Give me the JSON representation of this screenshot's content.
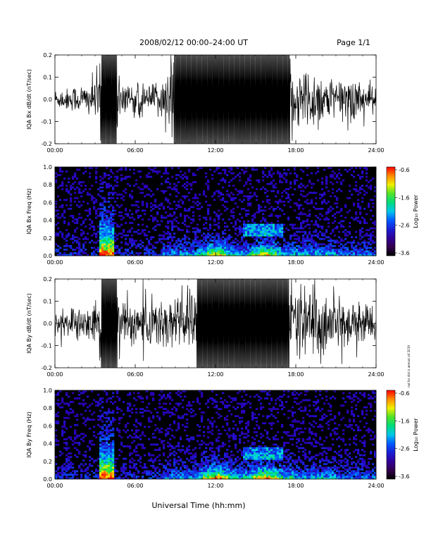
{
  "header": {
    "title": "2008/02/12  00:00–24:00 UT",
    "page": "Page 1/1"
  },
  "footer": {
    "xlabel": "Universal Time (hh:mm)"
  },
  "side_note": "not for dist is aemod csf 2019",
  "chart_data": [
    {
      "type": "line",
      "ylabel": "IQA Bx dB/dt (nT/sec)",
      "x_ticks": [
        "00:00",
        "06:00",
        "12:00",
        "18:00",
        "24:00"
      ],
      "y_ticks": [
        "0.2",
        "0.1",
        "0.0",
        "-0.1",
        "-0.2"
      ],
      "xlim": [
        0,
        24
      ],
      "ylim": [
        -0.2,
        0.2
      ],
      "envelope": {
        "x": [
          0,
          1,
          2,
          3,
          3.5,
          4.6,
          5,
          6,
          7,
          8,
          8.5,
          9,
          10,
          11,
          12,
          13,
          14,
          15,
          16,
          17,
          17.5,
          18,
          19,
          20,
          21,
          22,
          23,
          24
        ],
        "amplitude": [
          0.04,
          0.05,
          0.06,
          0.08,
          0.2,
          0.2,
          0.08,
          0.07,
          0.06,
          0.07,
          0.15,
          0.2,
          0.2,
          0.2,
          0.2,
          0.2,
          0.2,
          0.2,
          0.2,
          0.2,
          0.2,
          0.12,
          0.14,
          0.1,
          0.08,
          0.1,
          0.08,
          0.05
        ]
      }
    },
    {
      "type": "heatmap",
      "ylabel": "IQA Bx Freq (Hz)",
      "x_ticks": [
        "00:00",
        "06:00",
        "12:00",
        "18:00",
        "24:00"
      ],
      "y_ticks": [
        "1.0",
        "0.8",
        "0.6",
        "0.4",
        "0.2",
        "0.0"
      ],
      "xlim": [
        0,
        24
      ],
      "ylim": [
        0,
        1.0
      ],
      "colorbar": {
        "label": "Log₁₀ Power",
        "ticks": [
          "-0.6",
          "-1.6",
          "-2.6",
          "-3.6"
        ],
        "range": [
          -3.6,
          -0.6
        ]
      }
    },
    {
      "type": "line",
      "ylabel": "IQA By dB/dt (nT/sec)",
      "x_ticks": [
        "00:00",
        "06:00",
        "12:00",
        "18:00",
        "24:00"
      ],
      "y_ticks": [
        "0.2",
        "0.1",
        "0.0",
        "-0.1",
        "-0.2"
      ],
      "xlim": [
        0,
        24
      ],
      "ylim": [
        -0.2,
        0.2
      ],
      "envelope": {
        "x": [
          0,
          1,
          2,
          3,
          3.5,
          4.6,
          5,
          6,
          7,
          8,
          9,
          10,
          10.8,
          11.5,
          12,
          13,
          14,
          15,
          16,
          17,
          18,
          19,
          20,
          21,
          22,
          23,
          24
        ],
        "amplitude": [
          0.05,
          0.07,
          0.06,
          0.08,
          0.2,
          0.2,
          0.1,
          0.1,
          0.12,
          0.1,
          0.14,
          0.16,
          0.2,
          0.2,
          0.2,
          0.2,
          0.2,
          0.2,
          0.2,
          0.2,
          0.18,
          0.16,
          0.13,
          0.12,
          0.1,
          0.1,
          0.06
        ]
      }
    },
    {
      "type": "heatmap",
      "ylabel": "IQA By Freq (Hz)",
      "x_ticks": [
        "00:00",
        "06:00",
        "12:00",
        "18:00",
        "24:00"
      ],
      "y_ticks": [
        "1.0",
        "0.8",
        "0.6",
        "0.4",
        "0.2",
        "0.0"
      ],
      "xlim": [
        0,
        24
      ],
      "ylim": [
        0,
        1.0
      ],
      "colorbar": {
        "label": "Log₁₀ Power",
        "ticks": [
          "-0.6",
          "-1.6",
          "-2.6",
          "-3.6"
        ],
        "range": [
          -3.6,
          -0.6
        ]
      }
    }
  ]
}
